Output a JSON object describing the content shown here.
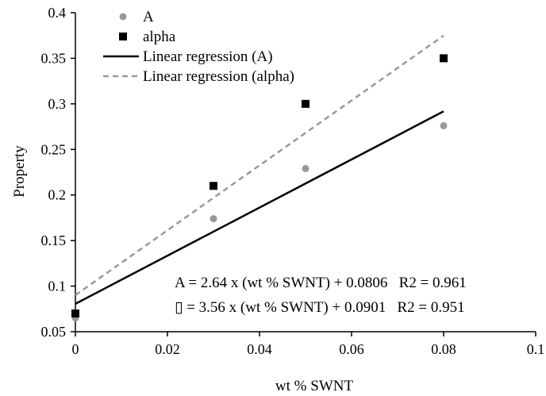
{
  "chart_data": {
    "type": "scatter",
    "title": "",
    "xlabel": "wt % SWNT",
    "ylabel": "Property",
    "xlim": [
      0,
      0.1
    ],
    "ylim": [
      0.05,
      0.4
    ],
    "x_ticks": [
      0,
      0.02,
      0.04,
      0.06,
      0.08,
      0.1
    ],
    "x_tick_labels": [
      "0",
      "0.02",
      "0.04",
      "0.06",
      "0.08",
      "0.1"
    ],
    "y_ticks": [
      0.05,
      0.1,
      0.15,
      0.2,
      0.25,
      0.3,
      0.35,
      0.4
    ],
    "y_tick_labels": [
      "0.05",
      "0.1",
      "0.15",
      "0.2",
      "0.25",
      "0.3",
      "0.35",
      "0.4"
    ],
    "grid": false,
    "legend_position": "top-left",
    "series": [
      {
        "name": "A",
        "kind": "points",
        "marker": "circle",
        "color": "#999999",
        "x": [
          0,
          0.03,
          0.05,
          0.08
        ],
        "y": [
          0.065,
          0.174,
          0.229,
          0.276
        ]
      },
      {
        "name": "alpha",
        "kind": "points",
        "marker": "square",
        "color": "#000000",
        "x": [
          0,
          0.03,
          0.05,
          0.08
        ],
        "y": [
          0.07,
          0.21,
          0.3,
          0.35
        ]
      },
      {
        "name": "Linear regression (A)",
        "kind": "line",
        "style": "solid",
        "color": "#000000",
        "slope": 2.64,
        "intercept": 0.0806,
        "x_range": [
          0,
          0.08
        ]
      },
      {
        "name": "Linear regression (alpha)",
        "kind": "line",
        "style": "dashed",
        "color": "#999999",
        "slope": 3.56,
        "intercept": 0.0901,
        "x_range": [
          0,
          0.08
        ]
      }
    ],
    "annotations": [
      "A = 2.64 x (wt % SWNT) + 0.0806   R2 = 0.961",
      "▯ = 3.56 x (wt % SWNT) + 0.0901   R2 = 0.951"
    ]
  }
}
